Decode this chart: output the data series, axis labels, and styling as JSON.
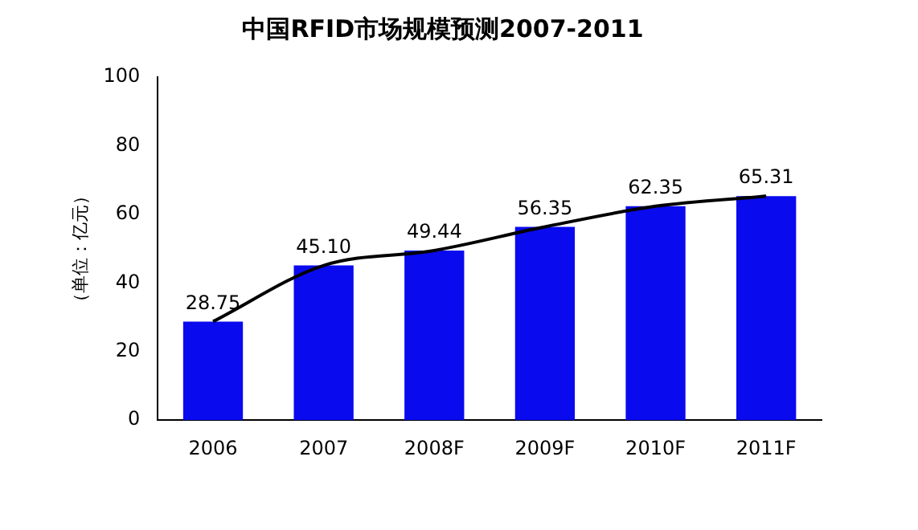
{
  "chart_data": {
    "type": "bar",
    "title": "中国RFID市场规模预测2007-2011",
    "ylabel": "（单位：亿元）",
    "categories": [
      "2006",
      "2007",
      "2008F",
      "2009F",
      "2010F",
      "2011F"
    ],
    "series": [
      {
        "color": "#0a0aee",
        "values": [
          28.75,
          45.1,
          49.44,
          56.35,
          62.35,
          65.31
        ],
        "value_labels": [
          "28.75",
          "45.10",
          "49.44",
          "56.35",
          "62.35",
          "65.31"
        ]
      },
      {
        "type": "line",
        "color": "#000000",
        "values": [
          28.75,
          45.1,
          49.44,
          56.35,
          62.35,
          65.31
        ]
      }
    ],
    "ylim": [
      0,
      100
    ],
    "yticks": [
      0,
      20,
      40,
      60,
      80,
      100
    ],
    "grid": false,
    "legend": false,
    "marker": "none",
    "line_style": "solid"
  }
}
